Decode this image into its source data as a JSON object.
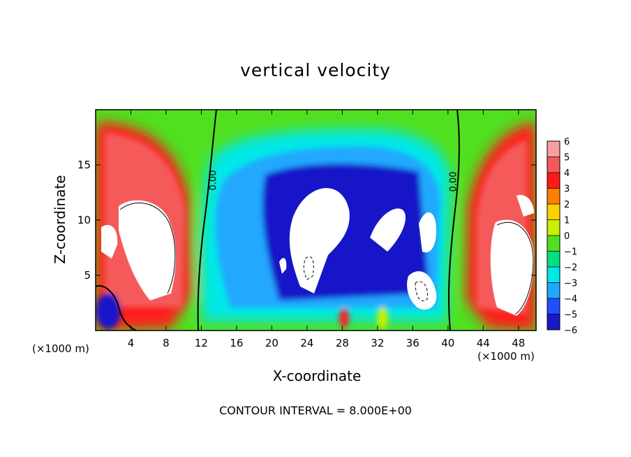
{
  "chart_data": {
    "type": "heatmap",
    "title": "vertical velocity",
    "xlabel": "X-coordinate",
    "ylabel": "Z-coordinate",
    "x_unit_label": "(×1000 m)",
    "xlim": [
      0,
      50
    ],
    "ylim": [
      0,
      20
    ],
    "x_ticks": [
      4,
      8,
      12,
      16,
      20,
      24,
      28,
      32,
      36,
      40,
      44,
      48
    ],
    "y_ticks": [
      5,
      10,
      15
    ],
    "colorbar": {
      "levels": [
        6,
        5,
        4,
        3,
        2,
        1,
        0,
        -1,
        -2,
        -3,
        -4,
        -5,
        -6
      ],
      "colors": [
        "#f6a0a0",
        "#f55a5a",
        "#ff1a1a",
        "#ff8000",
        "#ffd000",
        "#c8f000",
        "#50e020",
        "#00e080",
        "#00e8e8",
        "#20a8ff",
        "#2050ff",
        "#1818c8",
        "#8010c8"
      ]
    },
    "contour_labels": [
      "0.00",
      "0.00"
    ],
    "contour_interval_text": "CONTOUR INTERVAL = 8.000E+00",
    "features": [
      {
        "kind": "updraft",
        "x": [
          1,
          11
        ],
        "z": [
          4,
          17
        ],
        "max": 6
      },
      {
        "kind": "downdraft",
        "x": [
          14,
          40
        ],
        "z": [
          2,
          17
        ],
        "min": -6
      },
      {
        "kind": "updraft",
        "x": [
          41,
          50
        ],
        "z": [
          1,
          16
        ],
        "max": 6
      },
      {
        "kind": "downdraft",
        "x": [
          0.5,
          2.5
        ],
        "z": [
          1,
          3
        ],
        "min": -6
      }
    ]
  },
  "colors": {
    "axis": "#000000",
    "background": "#ffffff"
  }
}
